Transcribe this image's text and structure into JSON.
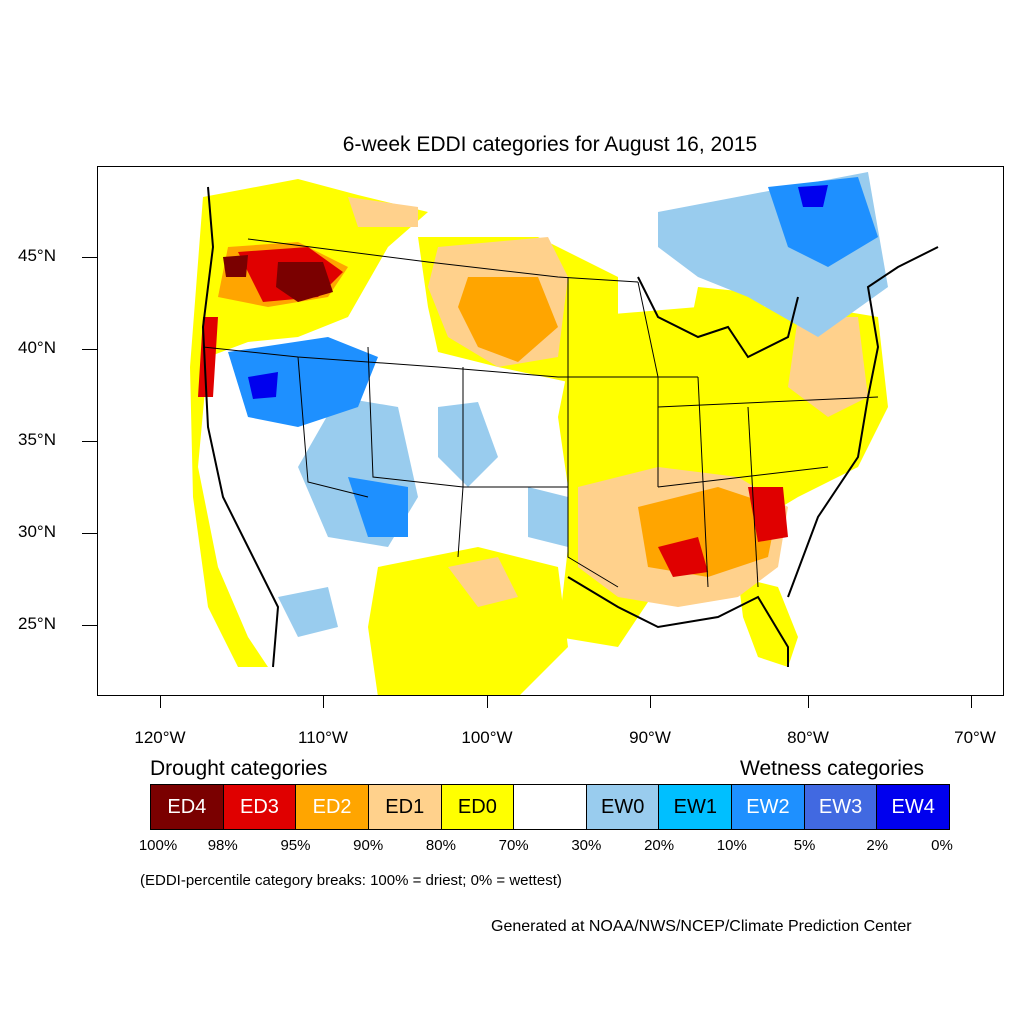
{
  "title": "6-week EDDI categories for August 16, 2015",
  "lat_labels": [
    "45°N",
    "40°N",
    "35°N",
    "30°N",
    "25°N"
  ],
  "lon_labels": [
    "120°W",
    "110°W",
    "100°W",
    "90°W",
    "80°W",
    "70°W"
  ],
  "legend": {
    "drought_heading": "Drought categories",
    "wetness_heading": "Wetness categories",
    "categories": [
      {
        "label": "ED4",
        "color": "#7a0000",
        "text_color": "#ffffff"
      },
      {
        "label": "ED3",
        "color": "#e00000",
        "text_color": "#ffffff"
      },
      {
        "label": "ED2",
        "color": "#ffa500",
        "text_color": "#ffffff"
      },
      {
        "label": "ED1",
        "color": "#ffd18c",
        "text_color": "#000000"
      },
      {
        "label": "ED0",
        "color": "#ffff00",
        "text_color": "#000000"
      },
      {
        "label": "",
        "color": "#ffffff",
        "text_color": "#000000"
      },
      {
        "label": "EW0",
        "color": "#99ccee",
        "text_color": "#000000"
      },
      {
        "label": "EW1",
        "color": "#00bfff",
        "text_color": "#000000"
      },
      {
        "label": "EW2",
        "color": "#1e90ff",
        "text_color": "#ffffff"
      },
      {
        "label": "EW3",
        "color": "#4169e1",
        "text_color": "#ffffff"
      },
      {
        "label": "EW4",
        "color": "#0000ee",
        "text_color": "#ffffff"
      }
    ],
    "percentiles": [
      "100%",
      "98%",
      "95%",
      "90%",
      "80%",
      "70%",
      "30%",
      "20%",
      "10%",
      "5%",
      "2%",
      "0%"
    ]
  },
  "note": "(EDDI-percentile category breaks: 100% = driest; 0% = wettest)",
  "credit": "Generated at NOAA/NWS/NCEP/Climate Prediction Center"
}
